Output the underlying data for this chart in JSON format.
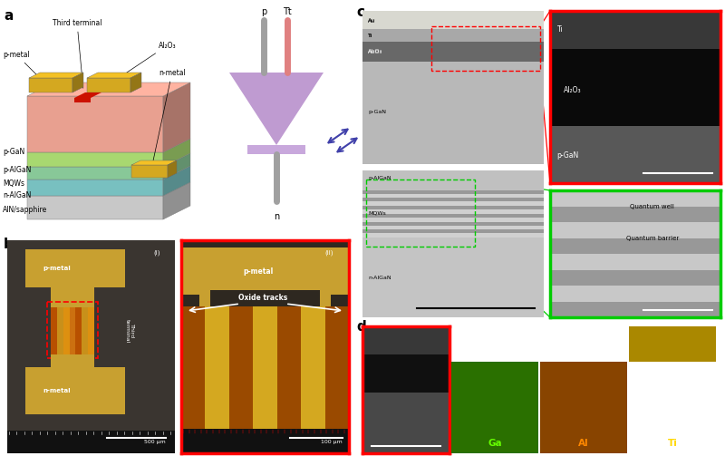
{
  "panel_labels": [
    "a",
    "b",
    "c",
    "d"
  ],
  "layer_colors": {
    "p_metal": "#D4A820",
    "Al2O3_stripe": "#CC0000",
    "p_GaN": "#E8A090",
    "p_AlGaN": "#A8D870",
    "MQWs": "#88C898",
    "n_AlGaN": "#78C0C0",
    "AlN_sapphire": "#C8C8C8",
    "n_metal": "#D4A820"
  },
  "diagram_colors": {
    "p_rod": "#A0A0A0",
    "Tt_rod": "#E08080",
    "prism": "#B890CC",
    "base_plate": "#C8A8DC",
    "n_rod": "#A0A0A0",
    "arrow": "#4040AA"
  },
  "tem_layer_colors": {
    "Au": "#D8D8D0",
    "Ti_main": "#A8A8A8",
    "Al2O3_main": "#686868",
    "p_GaN_main": "#B8B8B8",
    "gap": "#888888",
    "p_AlGaN_main": "#C0C0C0",
    "MQW_light": "#D0D0D0",
    "MQW_dark": "#989898",
    "n_AlGaN_main": "#C4C4C4"
  },
  "inset_top_colors": {
    "Ti": "#383838",
    "Al2O3": "#101010",
    "p_GaN": "#585858"
  },
  "inset_bot_colors": {
    "well": "#C8C8C8",
    "barrier": "#989898"
  },
  "eds_colors": {
    "panel0_dark": "#282828",
    "panel0_mid": "#181818",
    "Ga_bg": "#000800",
    "Ga_bright": "#2A7000",
    "Al_bg": "#080200",
    "Al_bright": "#884400",
    "Ti_bg": "#020208",
    "Ti_bright": "#334499"
  },
  "sem_bg": "#3A3530",
  "sem2_bg": "#282420",
  "sem_metal": "#C8A030",
  "sem_orange": "#B85800",
  "sem_gold": "#D4A820",
  "background": "#FFFFFF",
  "fontsize_panel": 11,
  "fontsize_text": 6,
  "fontsize_label": 5.5
}
